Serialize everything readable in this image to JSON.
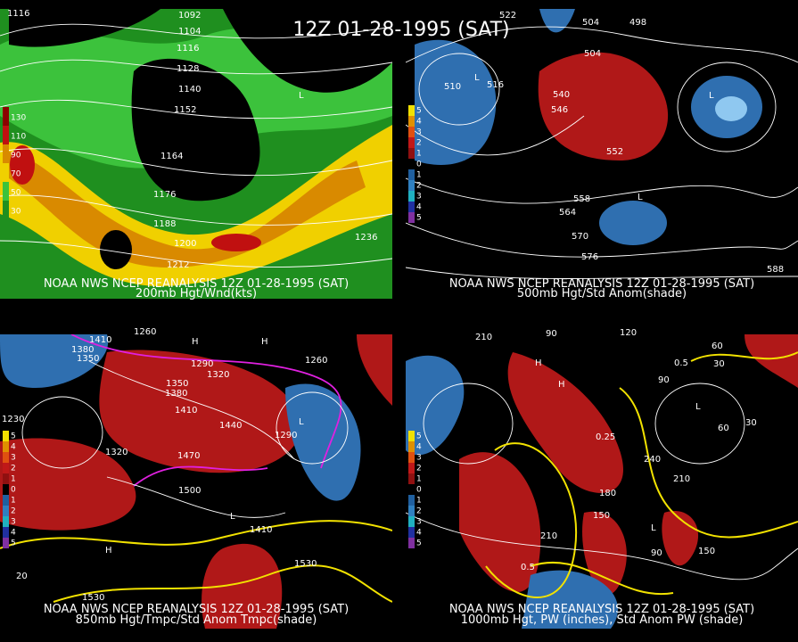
{
  "title": "12Z 01-28-1995 (SAT)",
  "panels": [
    {
      "caption_1": "NOAA NWS NCEP REANALYSIS 12Z 01-28-1995 (SAT)",
      "caption_2": "200mb Hgt/Wnd(kts)",
      "legend": [
        "130",
        "110",
        "90",
        "70",
        "50",
        "30"
      ],
      "labels": [
        "1116",
        "1092",
        "1104",
        "1116",
        "1128",
        "1140",
        "1152",
        "1164",
        "1176",
        "1188",
        "1200",
        "1212",
        "1236",
        "L"
      ]
    },
    {
      "caption_1": "NOAA NWS NCEP REANALYSIS 12Z 01-28-1995 (SAT)",
      "caption_2": "500mb Hgt/Std Anom(shade)",
      "legend": [
        "5",
        "4",
        "3",
        "2",
        "1",
        "0",
        "1",
        "2",
        "3",
        "4",
        "5"
      ],
      "labels": [
        "522",
        "504",
        "498",
        "504",
        "510",
        "516",
        "540",
        "546",
        "552",
        "558",
        "564",
        "570",
        "576",
        "588",
        "L",
        "L",
        "L"
      ]
    },
    {
      "caption_1": "NOAA NWS NCEP REANALYSIS 12Z 01-28-1995 (SAT)",
      "caption_2": "850mb Hgt/Tmpc/Std Anom Tmpc(shade)",
      "legend": [
        "5",
        "4",
        "3",
        "2",
        "1",
        "0",
        "1",
        "2",
        "3",
        "4",
        "5"
      ],
      "labels": [
        "1410",
        "1380",
        "1350",
        "1260",
        "1290",
        "1320",
        "1350",
        "1380",
        "1410",
        "1440",
        "1470",
        "1500",
        "1530",
        "1530",
        "1260",
        "1230",
        "1290",
        "1320",
        "1410",
        "20",
        "H",
        "H",
        "L",
        "L",
        "H"
      ]
    },
    {
      "caption_1": "NOAA NWS NCEP REANALYSIS 12Z 01-28-1995 (SAT)",
      "caption_2": "1000mb Hgt, PW (inches), Std Anom PW (shade)",
      "legend": [
        "5",
        "4",
        "3",
        "2",
        "1",
        "0",
        "1",
        "2",
        "3",
        "4",
        "5"
      ],
      "labels": [
        "210",
        "90",
        "120",
        "60",
        "30",
        "0.5",
        "90",
        "30",
        "0.25",
        "240",
        "210",
        "180",
        "150",
        "210",
        "150",
        "0.5",
        "90",
        "60",
        "H",
        "H",
        "L",
        "L"
      ]
    }
  ]
}
